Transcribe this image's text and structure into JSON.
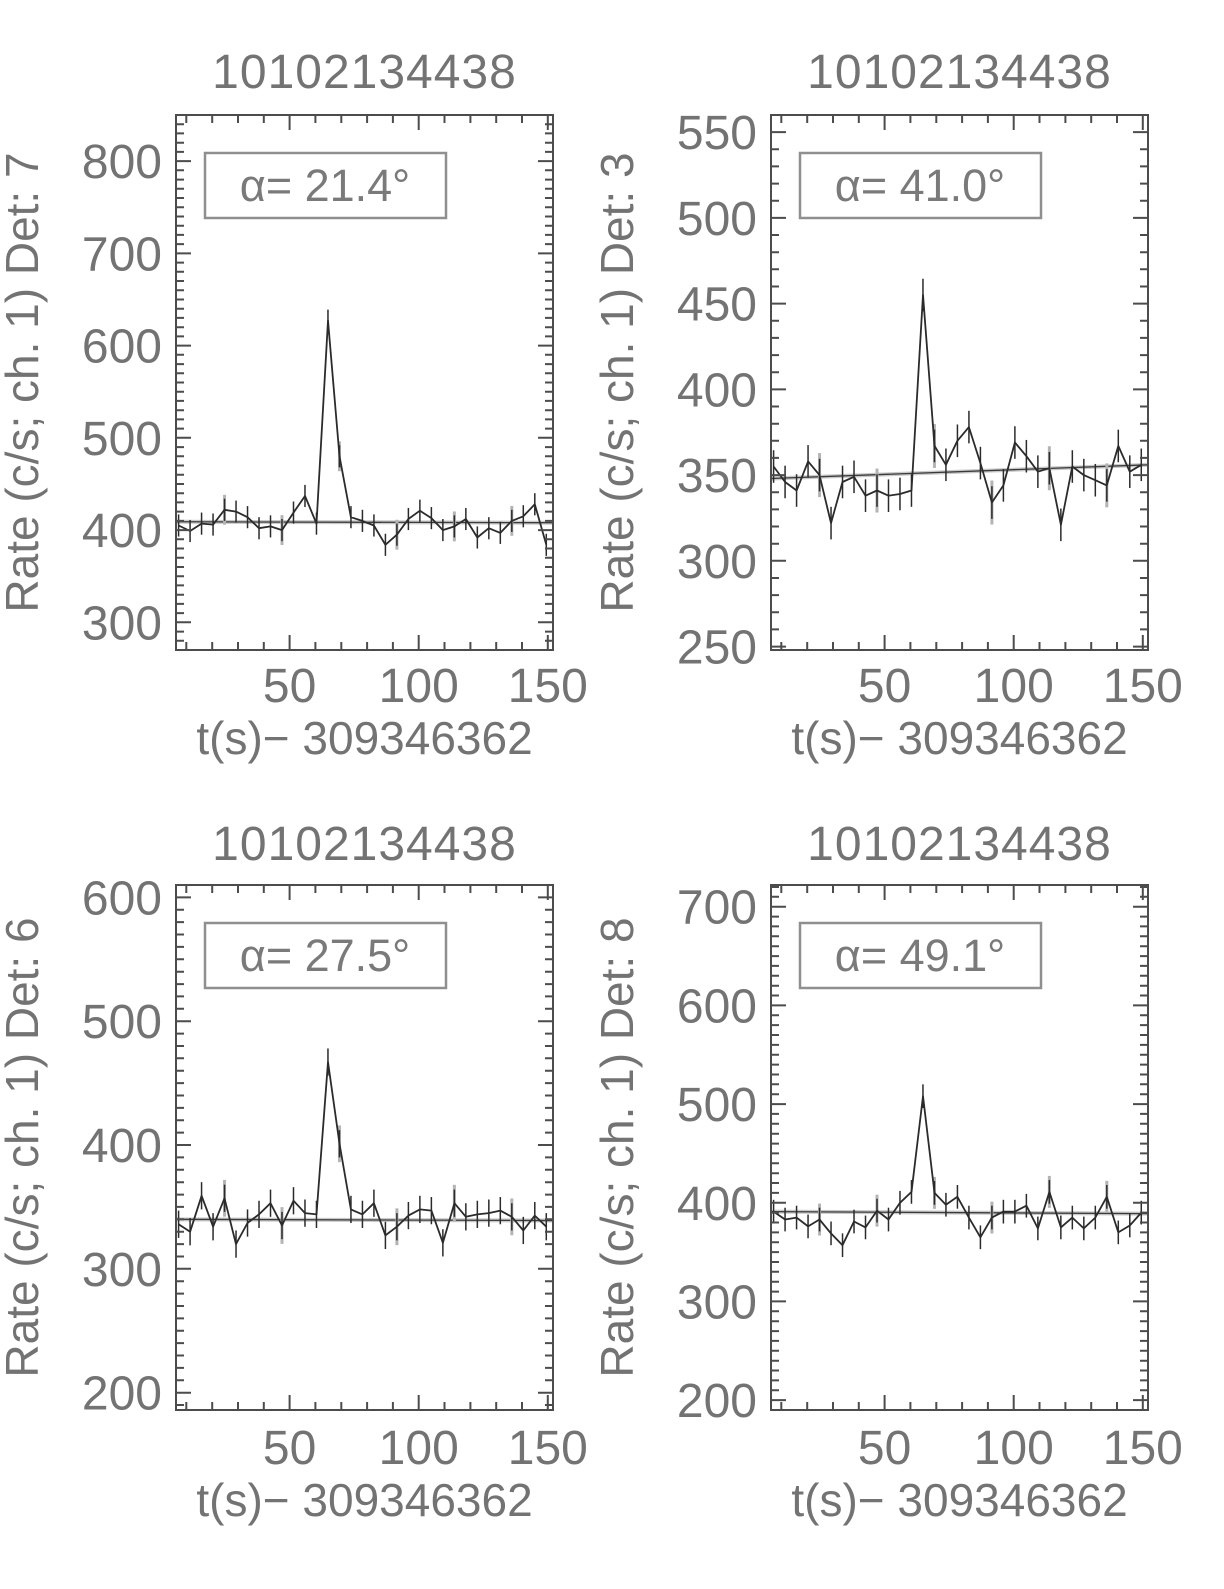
{
  "figure": {
    "kind": "multi-panel light curves",
    "background": "#ffffff",
    "colors": {
      "label": "#737373",
      "axis": "#4c4c4c",
      "series": "#2b2b2b",
      "error_gray": "#b4b4b4",
      "fit_gray": "#c9c9c9",
      "fit_dark": "#3a3a3a",
      "annotation_border": "#8f8f8f",
      "annotation_text": "#7a7a7a"
    }
  },
  "chart_data": [
    {
      "type": "line",
      "title": "10102134438",
      "ylabel": "Rate (c/s; ch. 1) Det: 7",
      "xlabel": "t(s)− 309346362",
      "annotation": "α=  21.4°",
      "xlim": [
        6,
        152
      ],
      "ylim": [
        270,
        850
      ],
      "xticks": [
        50,
        100,
        150
      ],
      "yticks": [
        300,
        400,
        500,
        600,
        700,
        800
      ],
      "x_minor_step": 10,
      "y_minor_step": 10,
      "x_start": 7,
      "x_step": 4.45,
      "values": [
        405,
        399,
        407,
        406,
        422,
        420,
        414,
        402,
        404,
        400,
        419,
        437,
        407,
        627,
        480,
        414,
        410,
        405,
        384,
        395,
        412,
        421,
        413,
        400,
        404,
        412,
        392,
        402,
        397,
        410,
        415,
        428,
        384
      ],
      "error": 12,
      "fit_line": [
        409,
        408
      ],
      "legend": "none",
      "grid": false
    },
    {
      "type": "line",
      "title": "10102134438",
      "ylabel": "Rate (c/s; ch. 1) Det: 3",
      "xlabel": "t(s)− 309346362",
      "annotation": "α=  41.0°",
      "xlim": [
        6,
        152
      ],
      "ylim": [
        248,
        560
      ],
      "xticks": [
        50,
        100,
        150
      ],
      "yticks": [
        250,
        300,
        350,
        400,
        450,
        500,
        550
      ],
      "x_minor_step": 10,
      "y_minor_step": 10,
      "x_start": 7,
      "x_step": 4.45,
      "values": [
        355,
        346,
        341,
        358,
        350,
        322,
        346,
        349,
        338,
        341,
        338,
        339,
        341,
        455,
        367,
        356,
        370,
        378,
        357,
        334,
        344,
        369,
        361,
        352,
        354,
        321,
        355,
        350,
        347,
        344,
        367,
        352,
        356
      ],
      "error": 9.5,
      "fit_line": [
        348,
        356
      ],
      "legend": "none",
      "grid": false
    },
    {
      "type": "line",
      "title": "10102134438",
      "ylabel": "Rate (c/s; ch. 1) Det: 6",
      "xlabel": "t(s)− 309346362",
      "annotation": "α=  27.5°",
      "xlim": [
        6,
        152
      ],
      "ylim": [
        186,
        610
      ],
      "xticks": [
        50,
        100,
        150
      ],
      "yticks": [
        200,
        300,
        400,
        500,
        600
      ],
      "x_minor_step": 10,
      "y_minor_step": 10,
      "x_start": 7,
      "x_step": 4.45,
      "values": [
        336,
        330,
        359,
        334,
        357,
        320,
        337,
        344,
        353,
        335,
        355,
        345,
        344,
        467,
        401,
        348,
        344,
        353,
        327,
        334,
        343,
        348,
        347,
        321,
        353,
        342,
        344,
        345,
        347,
        342,
        331,
        343,
        334
      ],
      "error": 11,
      "fit_line": [
        340,
        339
      ],
      "legend": "none",
      "grid": false
    },
    {
      "type": "line",
      "title": "10102134438",
      "ylabel": "Rate (c/s; ch. 1) Det: 8",
      "xlabel": "t(s)− 309346362",
      "annotation": "α=  49.1°",
      "xlim": [
        6,
        152
      ],
      "ylim": [
        190,
        722
      ],
      "xticks": [
        50,
        100,
        150
      ],
      "yticks": [
        200,
        300,
        400,
        500,
        600,
        700
      ],
      "x_minor_step": 10,
      "y_minor_step": 10,
      "x_start": 7,
      "x_step": 4.45,
      "values": [
        391,
        383,
        385,
        376,
        383,
        369,
        357,
        381,
        375,
        392,
        383,
        400,
        411,
        508,
        410,
        398,
        406,
        385,
        365,
        385,
        391,
        391,
        397,
        374,
        411,
        375,
        385,
        374,
        385,
        406,
        370,
        377,
        390
      ],
      "error": 12,
      "fit_line": [
        391,
        389
      ],
      "legend": "none",
      "grid": false
    }
  ]
}
